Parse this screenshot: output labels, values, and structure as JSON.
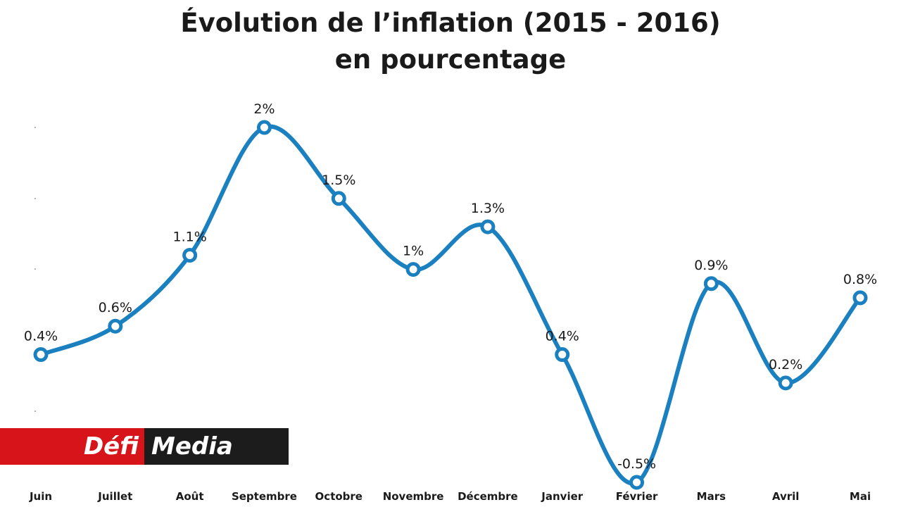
{
  "chart_data": {
    "type": "line",
    "title": "Évolution de l’inflation (2015 - 2016)",
    "subtitle": "en pourcentage",
    "categories": [
      "Juin",
      "Juillet",
      "Août",
      "Septembre",
      "Octobre",
      "Novembre",
      "Décembre",
      "Janvier",
      "Février",
      "Mars",
      "Avril",
      "Mai"
    ],
    "values": [
      0.4,
      0.6,
      1.1,
      2,
      1.5,
      1,
      1.3,
      0.4,
      -0.5,
      0.9,
      0.2,
      0.8
    ],
    "data_labels": [
      "0.4%",
      "0.6%",
      "1.1%",
      "2%",
      "1.5%",
      "1%",
      "1.3%",
      "0.4%",
      "-0.5%",
      "0.9%",
      "0.2%",
      "0.8%"
    ],
    "xlabel": "",
    "ylabel": "",
    "ylim": [
      -0.5,
      2
    ],
    "grid": false,
    "line_color": "#1b80c0"
  },
  "logo": {
    "part1": "Défi",
    "part2": "Media",
    "part1_color": "#d8141b",
    "part2_color": "#1c1c1c"
  }
}
